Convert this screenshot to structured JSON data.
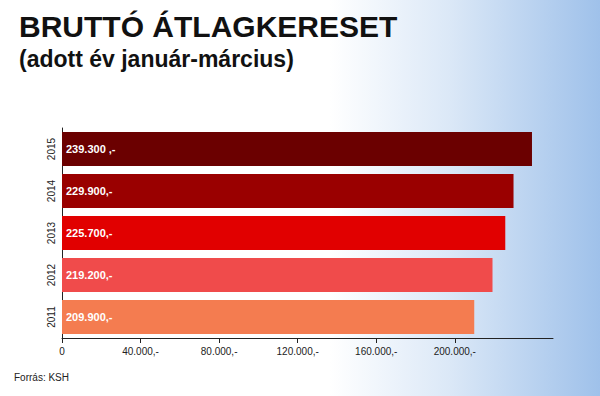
{
  "chart_data": {
    "type": "bar",
    "title": "BRUTTÓ ÁTLAGKERESET",
    "subtitle": "(adott év január-március)",
    "source": "Forrás: KSH",
    "orientation": "horizontal",
    "categories": [
      "2015",
      "2014",
      "2013",
      "2012",
      "2011"
    ],
    "values": [
      239300,
      229900,
      225700,
      219200,
      209900
    ],
    "value_labels": [
      "239.300 ,-",
      "229.900,-",
      "225.700,-",
      "219.200,-",
      "209.900,-"
    ],
    "colors": [
      "#6b0000",
      "#9a0000",
      "#e10000",
      "#f04b4b",
      "#f47c50"
    ],
    "data_labels": true,
    "xlim": [
      0,
      250000
    ],
    "xticks": [
      0,
      {
        "value": 40000,
        "label": "40.000,-"
      },
      {
        "value": 80000,
        "label": "80.000,-"
      },
      {
        "value": 120000,
        "label": "120.000,-"
      },
      {
        "value": 160000,
        "label": "160.000,-"
      },
      {
        "value": 200000,
        "label": "200.000,-"
      }
    ],
    "grid": false
  }
}
